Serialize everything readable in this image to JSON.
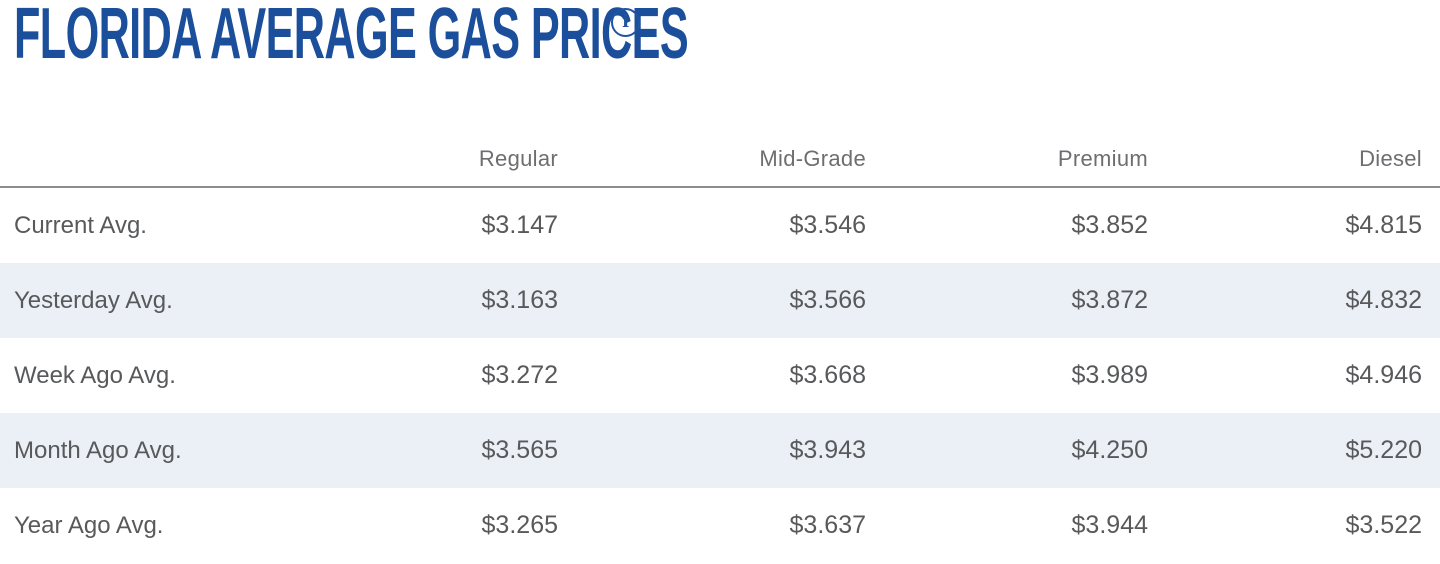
{
  "header": {
    "title": "FLORIDA AVERAGE GAS PRICES",
    "info_icon_glyph": "i"
  },
  "table": {
    "columns": [
      "Regular",
      "Mid-Grade",
      "Premium",
      "Diesel"
    ],
    "rows": [
      {
        "label": "Current Avg.",
        "values": [
          "$3.147",
          "$3.546",
          "$3.852",
          "$4.815"
        ]
      },
      {
        "label": "Yesterday Avg.",
        "values": [
          "$3.163",
          "$3.566",
          "$3.872",
          "$4.832"
        ]
      },
      {
        "label": "Week Ago Avg.",
        "values": [
          "$3.272",
          "$3.668",
          "$3.989",
          "$4.946"
        ]
      },
      {
        "label": "Month Ago Avg.",
        "values": [
          "$3.565",
          "$3.943",
          "$4.250",
          "$5.220"
        ]
      },
      {
        "label": "Year Ago Avg.",
        "values": [
          "$3.265",
          "$3.637",
          "$3.944",
          "$3.522"
        ]
      }
    ]
  },
  "colors": {
    "title_blue": "#1b4e9b",
    "row_stripe": "#eaf0f6",
    "header_text": "#6d6e71",
    "body_text": "#58595b",
    "divider": "#8a8c8e"
  }
}
